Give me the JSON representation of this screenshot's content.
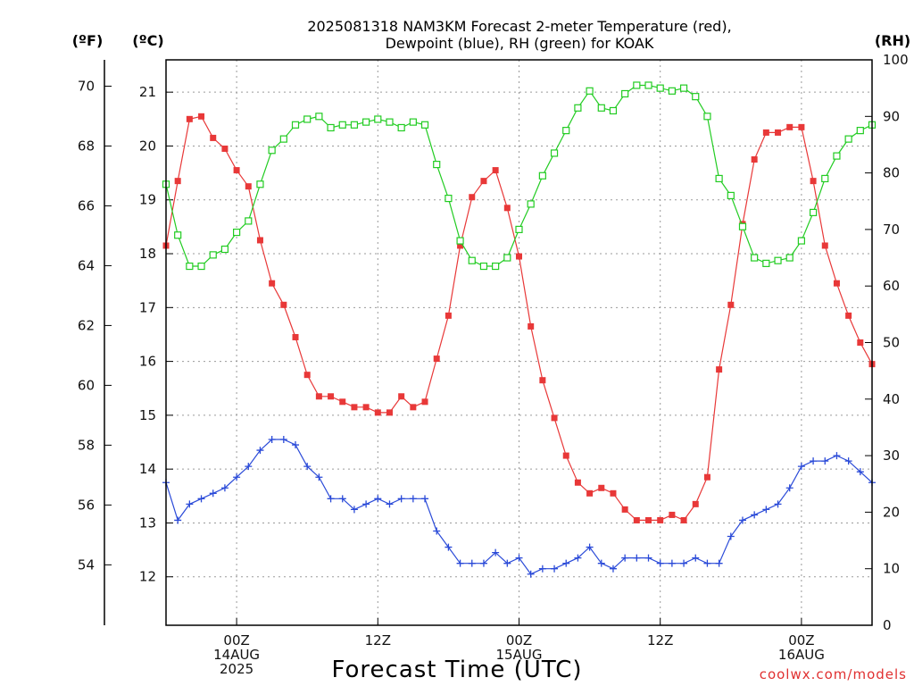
{
  "chart_data": {
    "type": "line",
    "title": "2025081318 NAM3KM Forecast 2-meter Temperature (red),",
    "subtitle": "Dewpoint (blue), RH (green) for KOAK",
    "xlabel": "Forecast Time (UTC)",
    "credit": "coolwx.com/models",
    "axis_units": {
      "fahrenheit": "(ºF)",
      "celsius": "(ºC)",
      "rh": "(RH)"
    },
    "fahrenheit_ticks": [
      "54",
      "56",
      "58",
      "60",
      "62",
      "64",
      "66",
      "68",
      "70"
    ],
    "celsius_ticks": [
      "12",
      "13",
      "14",
      "15",
      "16",
      "17",
      "18",
      "19",
      "20",
      "21"
    ],
    "rh_ticks": [
      "0",
      "10",
      "20",
      "30",
      "40",
      "50",
      "60",
      "70",
      "80",
      "90",
      "100"
    ],
    "celsius_range": [
      11.1,
      21.6
    ],
    "rh_range": [
      0,
      100
    ],
    "hour_range": [
      18,
      78
    ],
    "x_ticks": [
      {
        "hour": 24,
        "lines": [
          "00Z",
          "14AUG",
          "2025"
        ]
      },
      {
        "hour": 36,
        "lines": [
          "12Z"
        ]
      },
      {
        "hour": 48,
        "lines": [
          "00Z",
          "15AUG"
        ]
      },
      {
        "hour": 60,
        "lines": [
          "12Z"
        ]
      },
      {
        "hour": 72,
        "lines": [
          "00Z",
          "16AUG"
        ]
      }
    ],
    "grid": true,
    "series": [
      {
        "name": "Temperature",
        "color": "#e83838",
        "marker": "filled-square",
        "axis": "celsius",
        "values": [
          18.15,
          19.35,
          20.5,
          20.55,
          20.15,
          19.95,
          19.55,
          19.25,
          18.25,
          17.45,
          17.05,
          16.45,
          15.75,
          15.35,
          15.35,
          15.25,
          15.15,
          15.15,
          15.05,
          15.05,
          15.35,
          15.15,
          15.25,
          16.05,
          16.85,
          18.15,
          19.05,
          19.35,
          19.55,
          18.85,
          17.95,
          16.65,
          15.65,
          14.95,
          14.25,
          13.75,
          13.55,
          13.65,
          13.55,
          13.25,
          13.05,
          13.05,
          13.05,
          13.15,
          13.05,
          13.35,
          13.85,
          15.85,
          17.05,
          18.55,
          19.75,
          20.25,
          20.25,
          20.35,
          20.35,
          19.35,
          18.15,
          17.45,
          16.85,
          16.35,
          15.95
        ]
      },
      {
        "name": "Dewpoint",
        "color": "#2a4ad8",
        "marker": "plus",
        "axis": "celsius",
        "values": [
          13.75,
          13.05,
          13.35,
          13.45,
          13.55,
          13.65,
          13.85,
          14.05,
          14.35,
          14.55,
          14.55,
          14.45,
          14.05,
          13.85,
          13.45,
          13.45,
          13.25,
          13.35,
          13.45,
          13.35,
          13.45,
          13.45,
          13.45,
          12.85,
          12.55,
          12.25,
          12.25,
          12.25,
          12.45,
          12.25,
          12.35,
          12.05,
          12.15,
          12.15,
          12.25,
          12.35,
          12.55,
          12.25,
          12.15,
          12.35,
          12.35,
          12.35,
          12.25,
          12.25,
          12.25,
          12.35,
          12.25,
          12.25,
          12.75,
          13.05,
          13.15,
          13.25,
          13.35,
          13.65,
          14.05,
          14.15,
          14.15,
          14.25,
          14.15,
          13.95,
          13.75
        ]
      },
      {
        "name": "RH",
        "color": "#22cc22",
        "marker": "open-square",
        "axis": "rh",
        "values": [
          78,
          69,
          63.5,
          63.5,
          65.5,
          66.5,
          69.5,
          71.5,
          78,
          84,
          86,
          88.5,
          89.5,
          90,
          88,
          88.5,
          88.5,
          89,
          89.5,
          89,
          88,
          89,
          88.5,
          81.5,
          75.5,
          68,
          64.5,
          63.5,
          63.5,
          65,
          70,
          74.5,
          79.5,
          83.5,
          87.5,
          91.5,
          94.5,
          91.5,
          91,
          94,
          95.5,
          95.5,
          95,
          94.5,
          95,
          93.5,
          90,
          79,
          76,
          70.5,
          65,
          64,
          64.5,
          65,
          68,
          73,
          79,
          83,
          86,
          87.5,
          88.5
        ]
      }
    ]
  }
}
